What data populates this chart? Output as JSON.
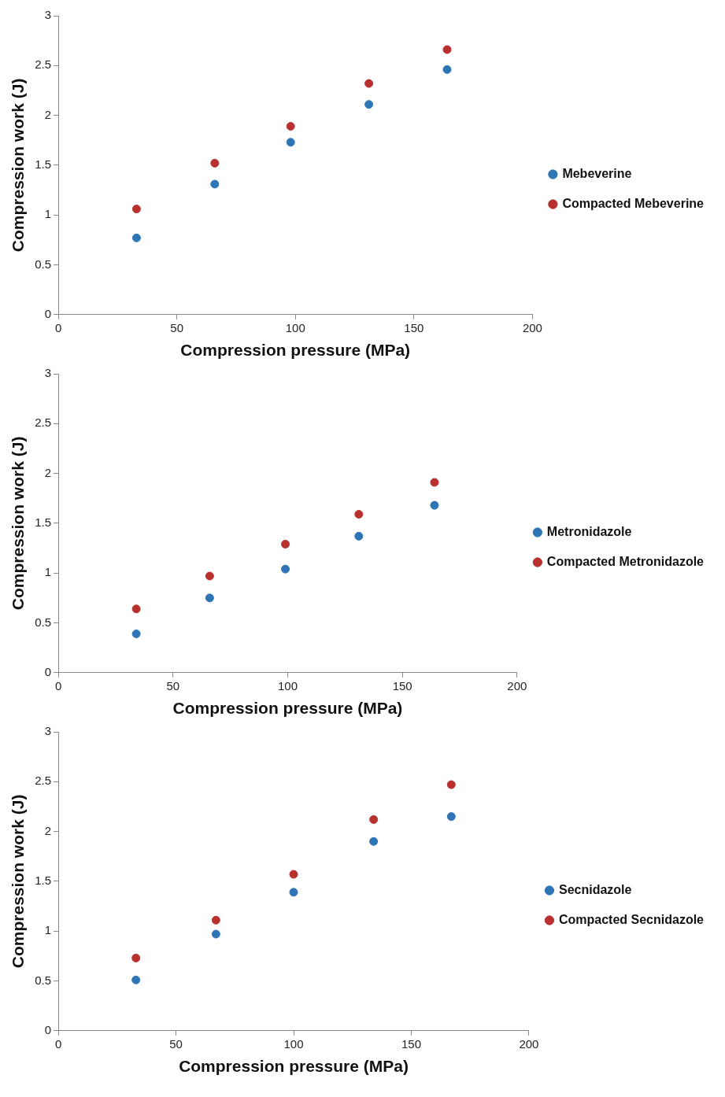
{
  "chart_data": [
    {
      "type": "scatter",
      "xlabel": "Compression pressure (MPa)",
      "ylabel": "Compression work (J)",
      "xlim": [
        0,
        200
      ],
      "xticks": [
        0,
        50,
        100,
        150,
        200
      ],
      "ylim": [
        0,
        3
      ],
      "yticks": [
        0,
        0.5,
        1,
        1.5,
        2,
        2.5,
        3
      ],
      "grid": false,
      "legend": "right",
      "marker": "circle",
      "series": [
        {
          "name": "Mebeverine",
          "color": "#2e75b6",
          "x": [
            33,
            66,
            98,
            131,
            164
          ],
          "values": [
            0.77,
            1.31,
            1.73,
            2.11,
            2.46
          ]
        },
        {
          "name": "Compacted Mebeverine",
          "color": "#b8312f",
          "x": [
            33,
            66,
            98,
            131,
            164
          ],
          "values": [
            1.06,
            1.52,
            1.89,
            2.32,
            2.66
          ]
        }
      ]
    },
    {
      "type": "scatter",
      "xlabel": "Compression pressure (MPa)",
      "ylabel": "Compression work (J)",
      "xlim": [
        0,
        200
      ],
      "xticks": [
        0,
        50,
        100,
        150,
        200
      ],
      "ylim": [
        0,
        3
      ],
      "yticks": [
        0,
        0.5,
        1,
        1.5,
        2,
        2.5,
        3
      ],
      "grid": false,
      "legend": "right",
      "marker": "circle",
      "series": [
        {
          "name": "Metronidazole",
          "color": "#2e75b6",
          "x": [
            34,
            66,
            99,
            131,
            164
          ],
          "values": [
            0.39,
            0.75,
            1.04,
            1.37,
            1.68
          ]
        },
        {
          "name": "Compacted Metronidazole",
          "color": "#b8312f",
          "x": [
            34,
            66,
            99,
            131,
            164
          ],
          "values": [
            0.64,
            0.97,
            1.29,
            1.59,
            1.91
          ]
        }
      ]
    },
    {
      "type": "scatter",
      "xlabel": "Compression pressure (MPa)",
      "ylabel": "Compression work (J)",
      "xlim": [
        0,
        200
      ],
      "xticks": [
        0,
        50,
        100,
        150,
        200
      ],
      "ylim": [
        0,
        3
      ],
      "yticks": [
        0,
        0.5,
        1,
        1.5,
        2,
        2.5,
        3
      ],
      "grid": false,
      "legend": "right",
      "marker": "circle",
      "series": [
        {
          "name": "Secnidazole",
          "color": "#2e75b6",
          "x": [
            33,
            67,
            100,
            134,
            167
          ],
          "values": [
            0.51,
            0.97,
            1.39,
            1.9,
            2.15
          ]
        },
        {
          "name": "Compacted Secnidazole",
          "color": "#b8312f",
          "x": [
            33,
            67,
            100,
            134,
            167
          ],
          "values": [
            0.73,
            1.11,
            1.57,
            2.12,
            2.47
          ]
        }
      ]
    }
  ]
}
